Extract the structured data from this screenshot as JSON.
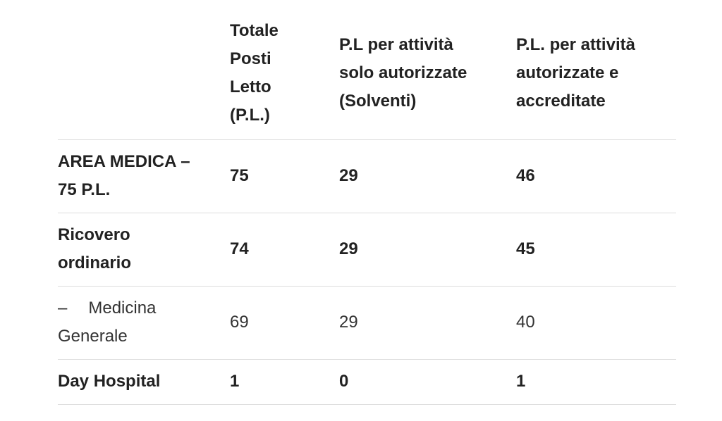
{
  "table": {
    "headers": [
      "",
      "Totale Posti Letto (P.L.)",
      "P.L per attività solo autorizzate (Solventi)",
      "P.L. per attività autorizzate e accreditate"
    ],
    "header_lines": {
      "c1": [
        "Totale",
        "Posti",
        "Letto",
        "(P.L.)"
      ],
      "c2": [
        "P.L per attività",
        "solo autorizzate",
        "(Solventi)"
      ],
      "c3": [
        "P.L. per attività",
        "autorizzate e",
        "accreditate"
      ]
    },
    "rows": [
      {
        "label_lines": [
          "AREA MEDICA –",
          "75 P.L."
        ],
        "total": "75",
        "solventi": "29",
        "accreditate": "46",
        "bold": true
      },
      {
        "label_lines": [
          "Ricovero",
          "ordinario"
        ],
        "total": "74",
        "solventi": "29",
        "accreditate": "45",
        "bold": true
      },
      {
        "label_dash": "–",
        "label_lines": [
          "Medicina",
          "Generale"
        ],
        "total": "69",
        "solventi": "29",
        "accreditate": "40",
        "bold": false
      },
      {
        "label_lines": [
          "Day Hospital"
        ],
        "total": "1",
        "solventi": "0",
        "accreditate": "1",
        "bold": true
      }
    ]
  }
}
